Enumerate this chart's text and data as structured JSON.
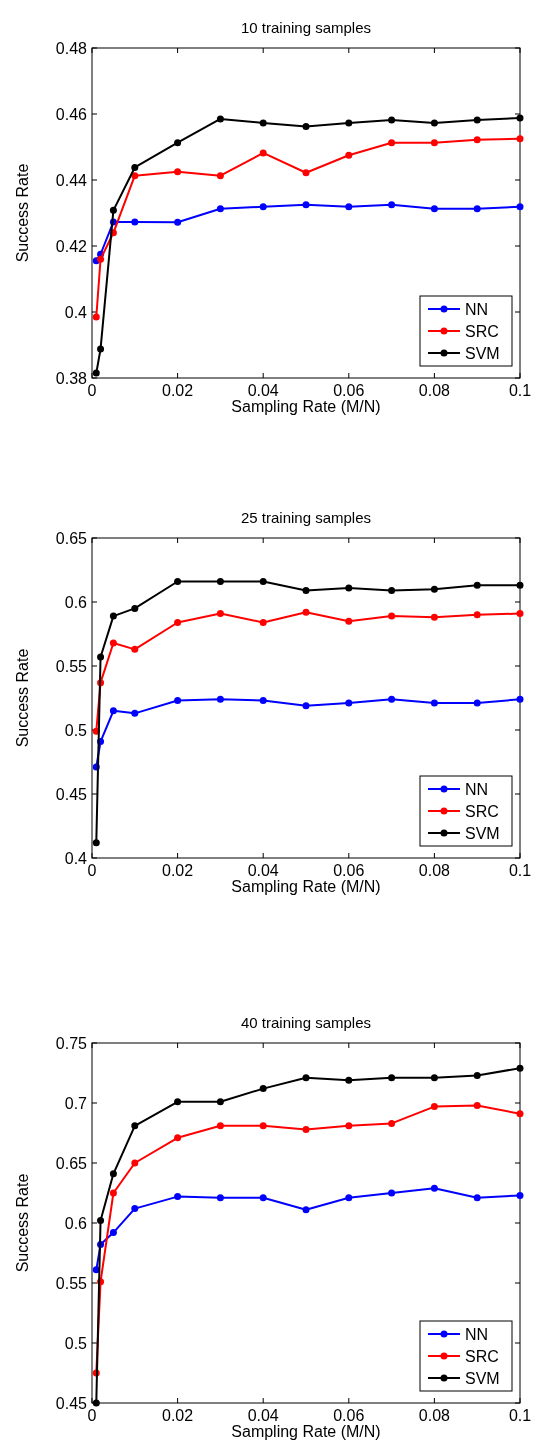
{
  "chart_data": [
    {
      "type": "line",
      "title": "10 training samples",
      "xlabel": "Sampling Rate (M/N)",
      "ylabel": "Success Rate",
      "x": [
        0.001,
        0.002,
        0.005,
        0.01,
        0.02,
        0.03,
        0.04,
        0.05,
        0.06,
        0.07,
        0.08,
        0.09,
        0.1
      ],
      "xlim": [
        0,
        0.1
      ],
      "xticks": [
        0,
        0.02,
        0.04,
        0.06,
        0.08,
        0.1
      ],
      "ylim": [
        0.38,
        0.48
      ],
      "yticks": [
        0.38,
        0.4,
        0.42,
        0.44,
        0.46,
        0.48
      ],
      "legend": "bottom right",
      "marker": "circle",
      "grid": false,
      "series": [
        {
          "name": "NN",
          "color": "#0000ff",
          "values": [
            0.4155,
            0.4175,
            0.4273,
            0.4273,
            0.4272,
            0.4313,
            0.4319,
            0.4325,
            0.4319,
            0.4325,
            0.4313,
            0.4313,
            0.4319
          ]
        },
        {
          "name": "SRC",
          "color": "#ff0000",
          "values": [
            0.3985,
            0.416,
            0.424,
            0.4413,
            0.4425,
            0.4413,
            0.4482,
            0.4422,
            0.4475,
            0.4513,
            0.4513,
            0.4522,
            0.4525
          ]
        },
        {
          "name": "SVM",
          "color": "#000000",
          "values": [
            0.3815,
            0.3888,
            0.4308,
            0.4438,
            0.4513,
            0.4585,
            0.4573,
            0.4562,
            0.4573,
            0.4582,
            0.4573,
            0.4582,
            0.4588
          ]
        }
      ]
    },
    {
      "type": "line",
      "title": "25 training samples",
      "xlabel": "Sampling Rate (M/N)",
      "ylabel": "Success Rate",
      "x": [
        0.001,
        0.002,
        0.005,
        0.01,
        0.02,
        0.03,
        0.04,
        0.05,
        0.06,
        0.07,
        0.08,
        0.09,
        0.1
      ],
      "xlim": [
        0,
        0.1
      ],
      "xticks": [
        0,
        0.02,
        0.04,
        0.06,
        0.08,
        0.1
      ],
      "ylim": [
        0.4,
        0.65
      ],
      "yticks": [
        0.4,
        0.45,
        0.5,
        0.55,
        0.6,
        0.65
      ],
      "legend": "bottom right",
      "marker": "circle",
      "grid": false,
      "series": [
        {
          "name": "NN",
          "color": "#0000ff",
          "values": [
            0.471,
            0.491,
            0.515,
            0.513,
            0.523,
            0.524,
            0.523,
            0.519,
            0.521,
            0.524,
            0.521,
            0.521,
            0.524
          ]
        },
        {
          "name": "SRC",
          "color": "#ff0000",
          "values": [
            0.499,
            0.537,
            0.568,
            0.563,
            0.584,
            0.591,
            0.584,
            0.592,
            0.585,
            0.589,
            0.588,
            0.59,
            0.591
          ]
        },
        {
          "name": "SVM",
          "color": "#000000",
          "values": [
            0.412,
            0.557,
            0.589,
            0.595,
            0.616,
            0.616,
            0.616,
            0.609,
            0.611,
            0.609,
            0.61,
            0.613,
            0.613
          ]
        }
      ]
    },
    {
      "type": "line",
      "title": "40 training samples",
      "xlabel": "Sampling Rate (M/N)",
      "ylabel": "Success Rate",
      "x": [
        0.001,
        0.002,
        0.005,
        0.01,
        0.02,
        0.03,
        0.04,
        0.05,
        0.06,
        0.07,
        0.08,
        0.09,
        0.1
      ],
      "xlim": [
        0,
        0.1
      ],
      "xticks": [
        0,
        0.02,
        0.04,
        0.06,
        0.08,
        0.1
      ],
      "ylim": [
        0.45,
        0.75
      ],
      "yticks": [
        0.45,
        0.5,
        0.55,
        0.6,
        0.65,
        0.7,
        0.75
      ],
      "legend": "bottom right",
      "marker": "circle",
      "grid": false,
      "series": [
        {
          "name": "NN",
          "color": "#0000ff",
          "values": [
            0.561,
            0.582,
            0.592,
            0.612,
            0.622,
            0.621,
            0.621,
            0.611,
            0.621,
            0.625,
            0.629,
            0.621,
            0.623
          ]
        },
        {
          "name": "SRC",
          "color": "#ff0000",
          "values": [
            0.475,
            0.551,
            0.625,
            0.65,
            0.671,
            0.681,
            0.681,
            0.678,
            0.681,
            0.683,
            0.697,
            0.698,
            0.691
          ]
        },
        {
          "name": "SVM",
          "color": "#000000",
          "values": [
            0.45,
            0.602,
            0.641,
            0.681,
            0.701,
            0.701,
            0.712,
            0.721,
            0.719,
            0.721,
            0.721,
            0.723,
            0.729
          ]
        }
      ]
    }
  ]
}
